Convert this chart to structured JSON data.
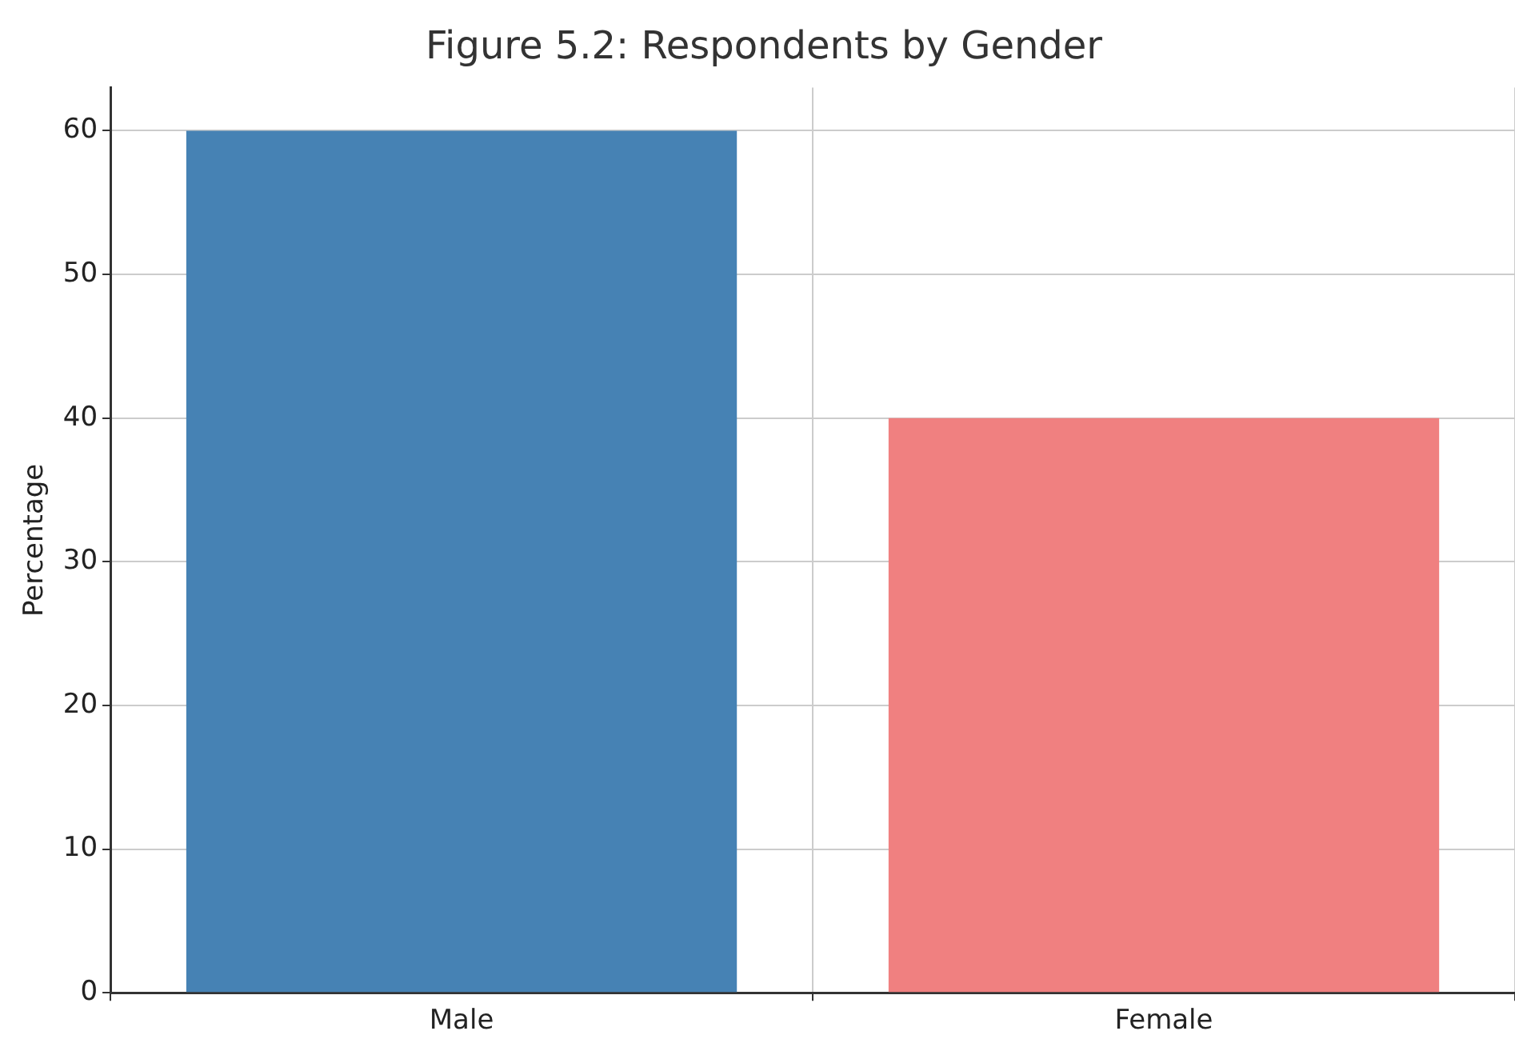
{
  "chart_data": {
    "type": "bar",
    "title": "Figure 5.2: Respondents by Gender",
    "ylabel": "Percentage",
    "categories": [
      "Male",
      "Female"
    ],
    "values": [
      60,
      40
    ],
    "colors": [
      "#4682b4",
      "#f08080"
    ],
    "ylim": [
      0,
      63
    ],
    "yticks": [
      0,
      10,
      20,
      30,
      40,
      50,
      60
    ],
    "grid": true,
    "legend": false
  }
}
